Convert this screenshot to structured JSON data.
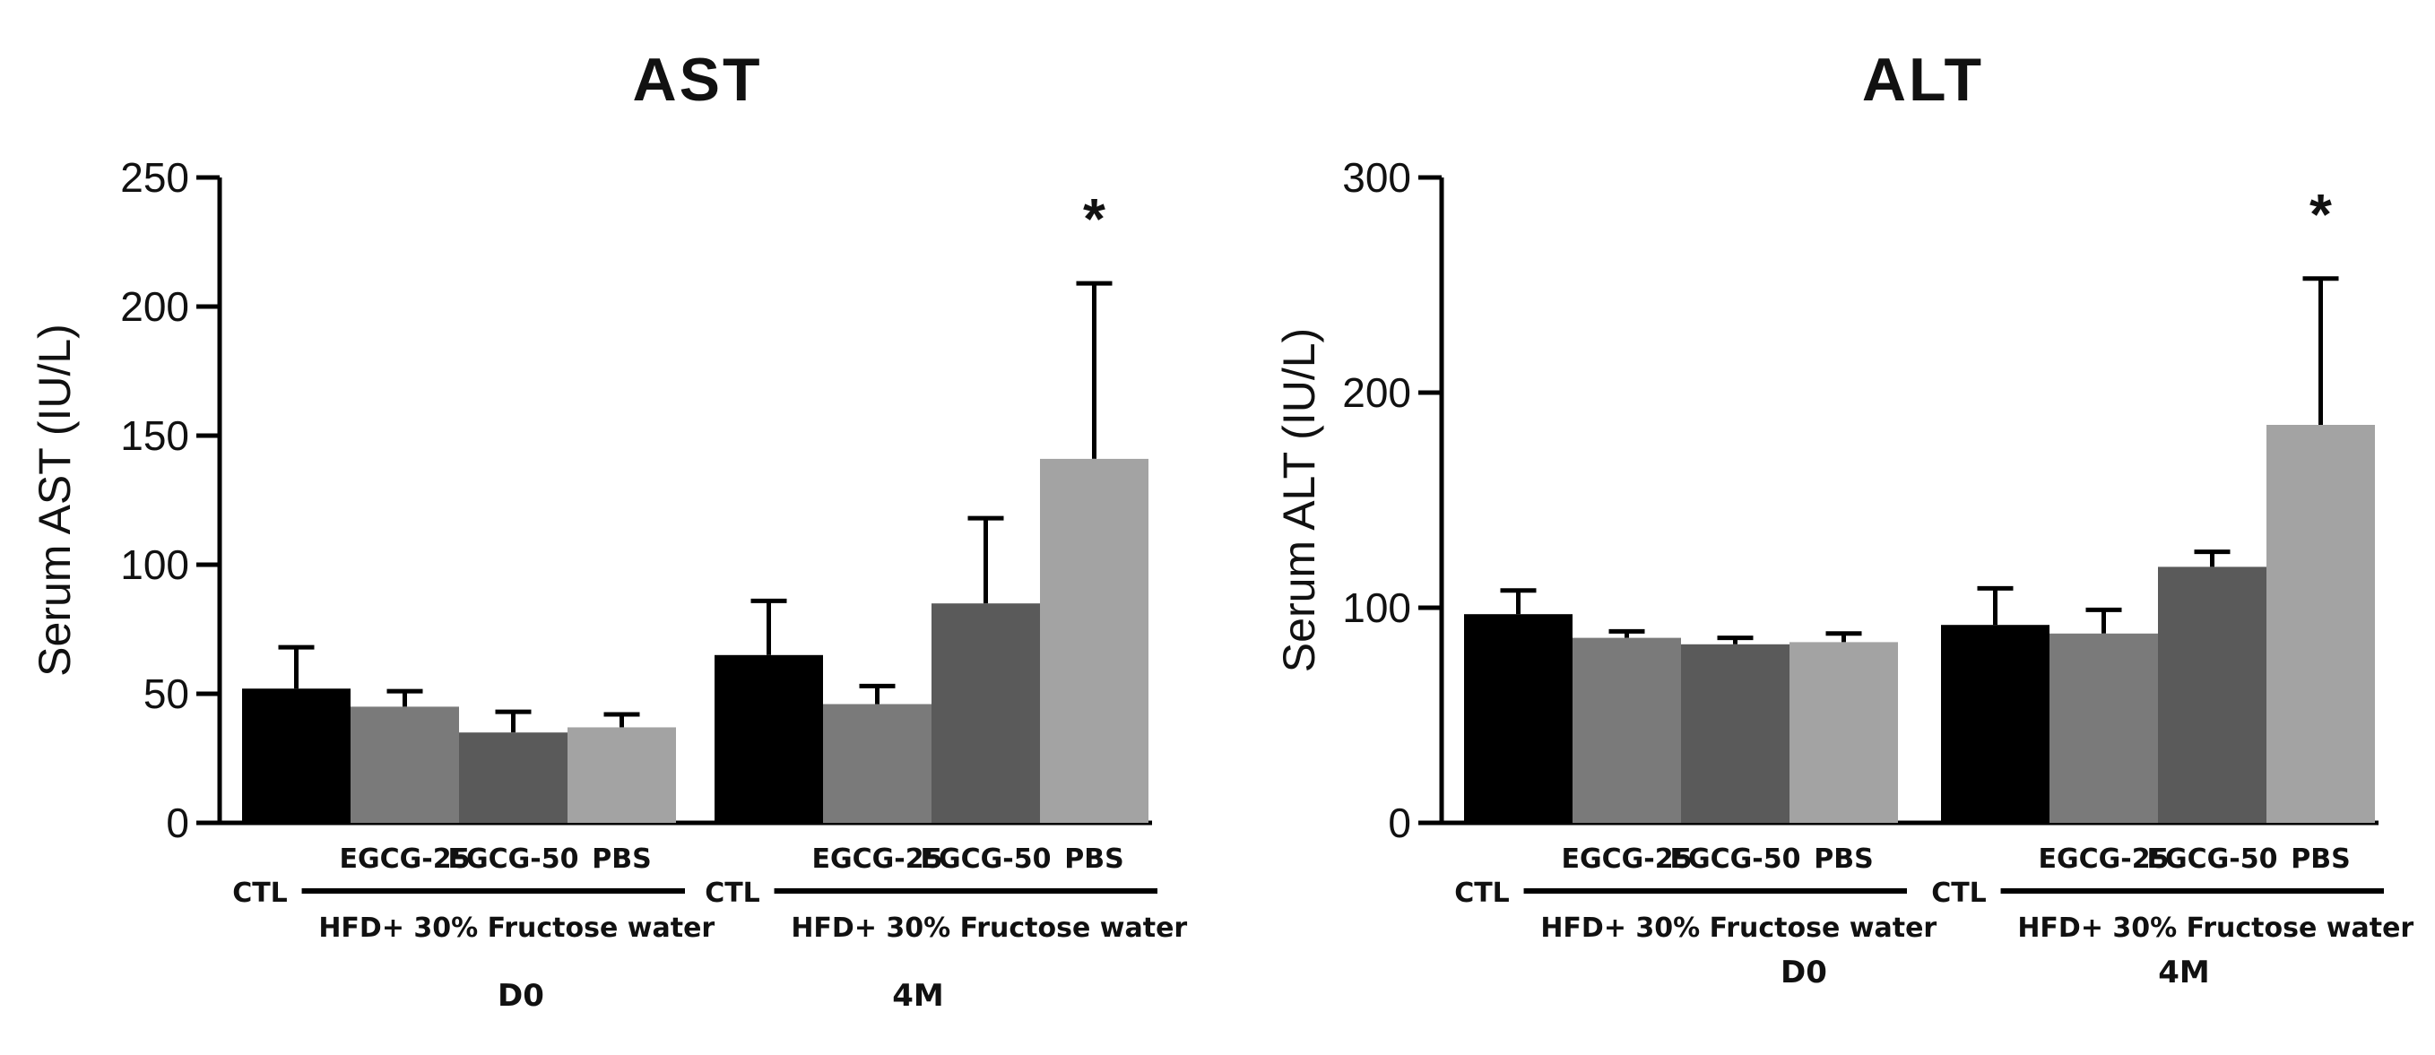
{
  "chart_data": [
    {
      "type": "bar",
      "title": "AST",
      "ylabel": "Serum AST (IU/L)",
      "ylim": [
        0,
        250
      ],
      "yticks": [
        "0",
        "50",
        "100",
        "150",
        "200",
        "250"
      ],
      "timepoints": [
        {
          "label": "D0",
          "control_label": "CTL",
          "treatment_group_label": "HFD+ 30% Fructose water",
          "categories": [
            "",
            "EGCG-25",
            "EGCG-50",
            "PBS"
          ],
          "values": [
            52,
            45,
            35,
            37
          ],
          "errors": [
            16,
            6,
            8,
            5
          ],
          "significance": [
            "",
            "",
            "",
            ""
          ]
        },
        {
          "label": "4M",
          "control_label": "CTL",
          "treatment_group_label": "HFD+ 30% Fructose water",
          "categories": [
            "",
            "EGCG-25",
            "EGCG-50",
            "PBS"
          ],
          "values": [
            65,
            46,
            85,
            141
          ],
          "errors": [
            21,
            7,
            33,
            68
          ],
          "significance": [
            "",
            "",
            "",
            "*"
          ]
        }
      ],
      "bar_colors": [
        "#000000",
        "#7a7a7a",
        "#5a5a5a",
        "#a3a3a3"
      ]
    },
    {
      "type": "bar",
      "title": "ALT",
      "ylabel": "Serum ALT (IU/L)",
      "ylim": [
        0,
        300
      ],
      "yticks": [
        "0",
        "100",
        "200",
        "300"
      ],
      "timepoints": [
        {
          "label": "D0",
          "control_label": "CTL",
          "treatment_group_label": "HFD+ 30% Fructose water",
          "categories": [
            "",
            "EGCG-25",
            "EGCG-50",
            "PBS"
          ],
          "values": [
            97,
            86,
            83,
            84
          ],
          "errors": [
            11,
            3,
            3,
            4
          ],
          "significance": [
            "",
            "",
            "",
            ""
          ]
        },
        {
          "label": "4M",
          "control_label": "CTL",
          "treatment_group_label": "HFD+ 30% Fructose water",
          "categories": [
            "",
            "EGCG-25",
            "EGCG-50",
            "PBS"
          ],
          "values": [
            92,
            88,
            119,
            185
          ],
          "errors": [
            17,
            11,
            7,
            68
          ],
          "significance": [
            "",
            "",
            "",
            "*"
          ]
        }
      ],
      "bar_colors": [
        "#000000",
        "#7a7a7a",
        "#5a5a5a",
        "#a3a3a3"
      ]
    }
  ]
}
